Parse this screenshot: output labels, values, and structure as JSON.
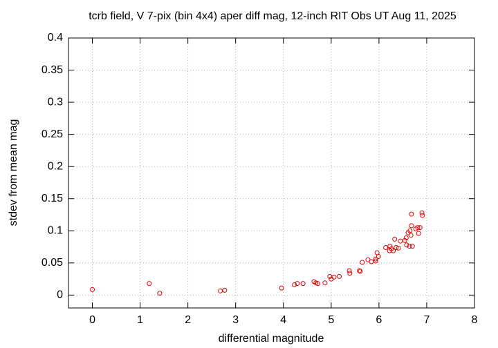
{
  "chart_data": {
    "type": "scatter",
    "title": "tcrb field, V 7-pix (bin 4x4) aper diff mag,  12-inch RIT Obs UT Aug 11, 2025",
    "x_label": "differential magnitude",
    "y_label": "stdev from mean mag",
    "color": "#e00000",
    "grid": true,
    "xlim": [
      -0.5,
      8
    ],
    "xticks": [
      0,
      1,
      2,
      3,
      4,
      5,
      6,
      7,
      8
    ],
    "ylim": [
      -0.02,
      0.4
    ],
    "yticks": [
      0,
      0.05,
      0.1,
      0.15,
      0.2,
      0.25,
      0.3,
      0.35,
      0.4
    ],
    "x": [
      0,
      1.19,
      1.41,
      2.68,
      2.77,
      3.96,
      4.23,
      4.29,
      4.41,
      4.64,
      4.68,
      4.72,
      4.87,
      4.97,
      5.0,
      5.06,
      5.17,
      5.38,
      5.39,
      5.59,
      5.61,
      5.65,
      5.77,
      5.84,
      5.93,
      5.93,
      5.96,
      5.99,
      6.14,
      6.23,
      6.26,
      6.22,
      6.3,
      6.33,
      6.36,
      6.41,
      6.45,
      6.54,
      6.57,
      6.58,
      6.61,
      6.64,
      6.67,
      6.65,
      6.7,
      6.68,
      6.68,
      6.77,
      6.81,
      6.83,
      6.86,
      6.9,
      6.91
    ],
    "values": [
      0.0086,
      0.018,
      0.003,
      0.0065,
      0.0075,
      0.011,
      0.016,
      0.018,
      0.018,
      0.021,
      0.019,
      0.018,
      0.019,
      0.029,
      0.025,
      0.028,
      0.029,
      0.038,
      0.034,
      0.038,
      0.037,
      0.051,
      0.055,
      0.052,
      0.053,
      0.056,
      0.066,
      0.06,
      0.074,
      0.076,
      0.072,
      0.069,
      0.069,
      0.087,
      0.074,
      0.073,
      0.084,
      0.085,
      0.089,
      0.078,
      0.097,
      0.076,
      0.093,
      0.1,
      0.076,
      0.108,
      0.126,
      0.103,
      0.105,
      0.096,
      0.105,
      0.128,
      0.124
    ]
  }
}
